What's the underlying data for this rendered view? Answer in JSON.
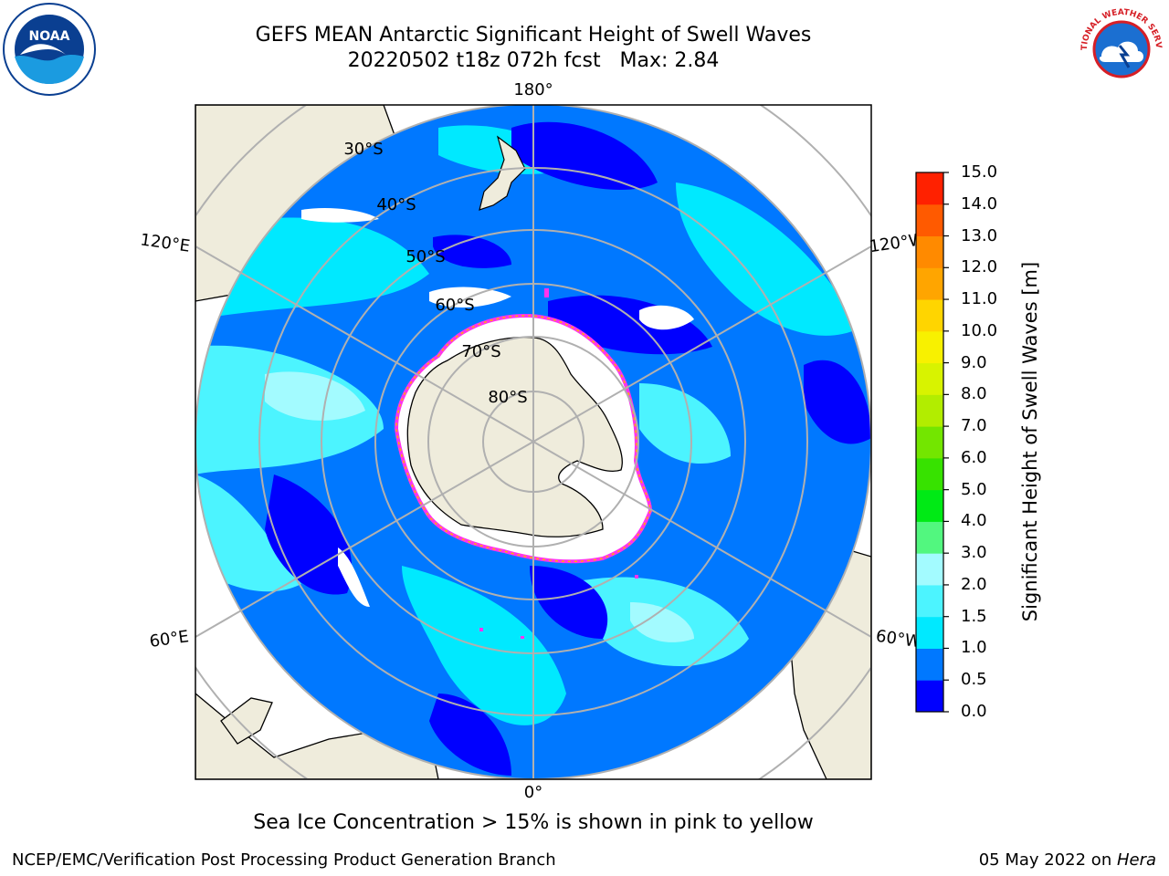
{
  "header": {
    "title_line1": "GEFS MEAN Antarctic Significant Height of Swell Waves",
    "title_line2": "20220502 t18z 072h fcst   Max: 2.84"
  },
  "map": {
    "projection": "south-polar-stereographic",
    "longitude_labels": [
      "180°",
      "120°E",
      "120°W",
      "60°E",
      "60°W",
      "0°"
    ],
    "latitude_labels": [
      "30°S",
      "40°S",
      "50°S",
      "60°S",
      "70°S",
      "80°S"
    ],
    "graticule": true,
    "land_color": "#efecdc",
    "ice_color": "#ffffff",
    "ice_edge_colors": [
      "#ff33ee",
      "#ffb300",
      "#ffee00"
    ]
  },
  "colorbar": {
    "label": "Significant Height of Swell Waves [m]",
    "ticks": [
      "0.0",
      "0.5",
      "1.0",
      "1.5",
      "2.0",
      "3.0",
      "4.0",
      "5.0",
      "6.0",
      "7.0",
      "8.0",
      "9.0",
      "10.0",
      "11.0",
      "12.0",
      "13.0",
      "14.0",
      "15.0"
    ],
    "colors": [
      "#0000ff",
      "#0078ff",
      "#00e9ff",
      "#4cf4ff",
      "#a3fbff",
      "#52f77f",
      "#00ea15",
      "#37e200",
      "#73e600",
      "#b2ed00",
      "#d8f300",
      "#f8f100",
      "#ffd500",
      "#ffa500",
      "#ff8a00",
      "#ff5a00",
      "#ff2100"
    ]
  },
  "footer": {
    "ice_note": "Sea Ice Concentration > 15% is shown in pink to yellow",
    "credit": "NCEP/EMC/Verification Post Processing Product Generation Branch",
    "date": "05 May 2022 on ",
    "machine": "Hera"
  },
  "logos": {
    "left": "NOAA",
    "right_text": "NATIONAL WEATHER SERVICE"
  }
}
